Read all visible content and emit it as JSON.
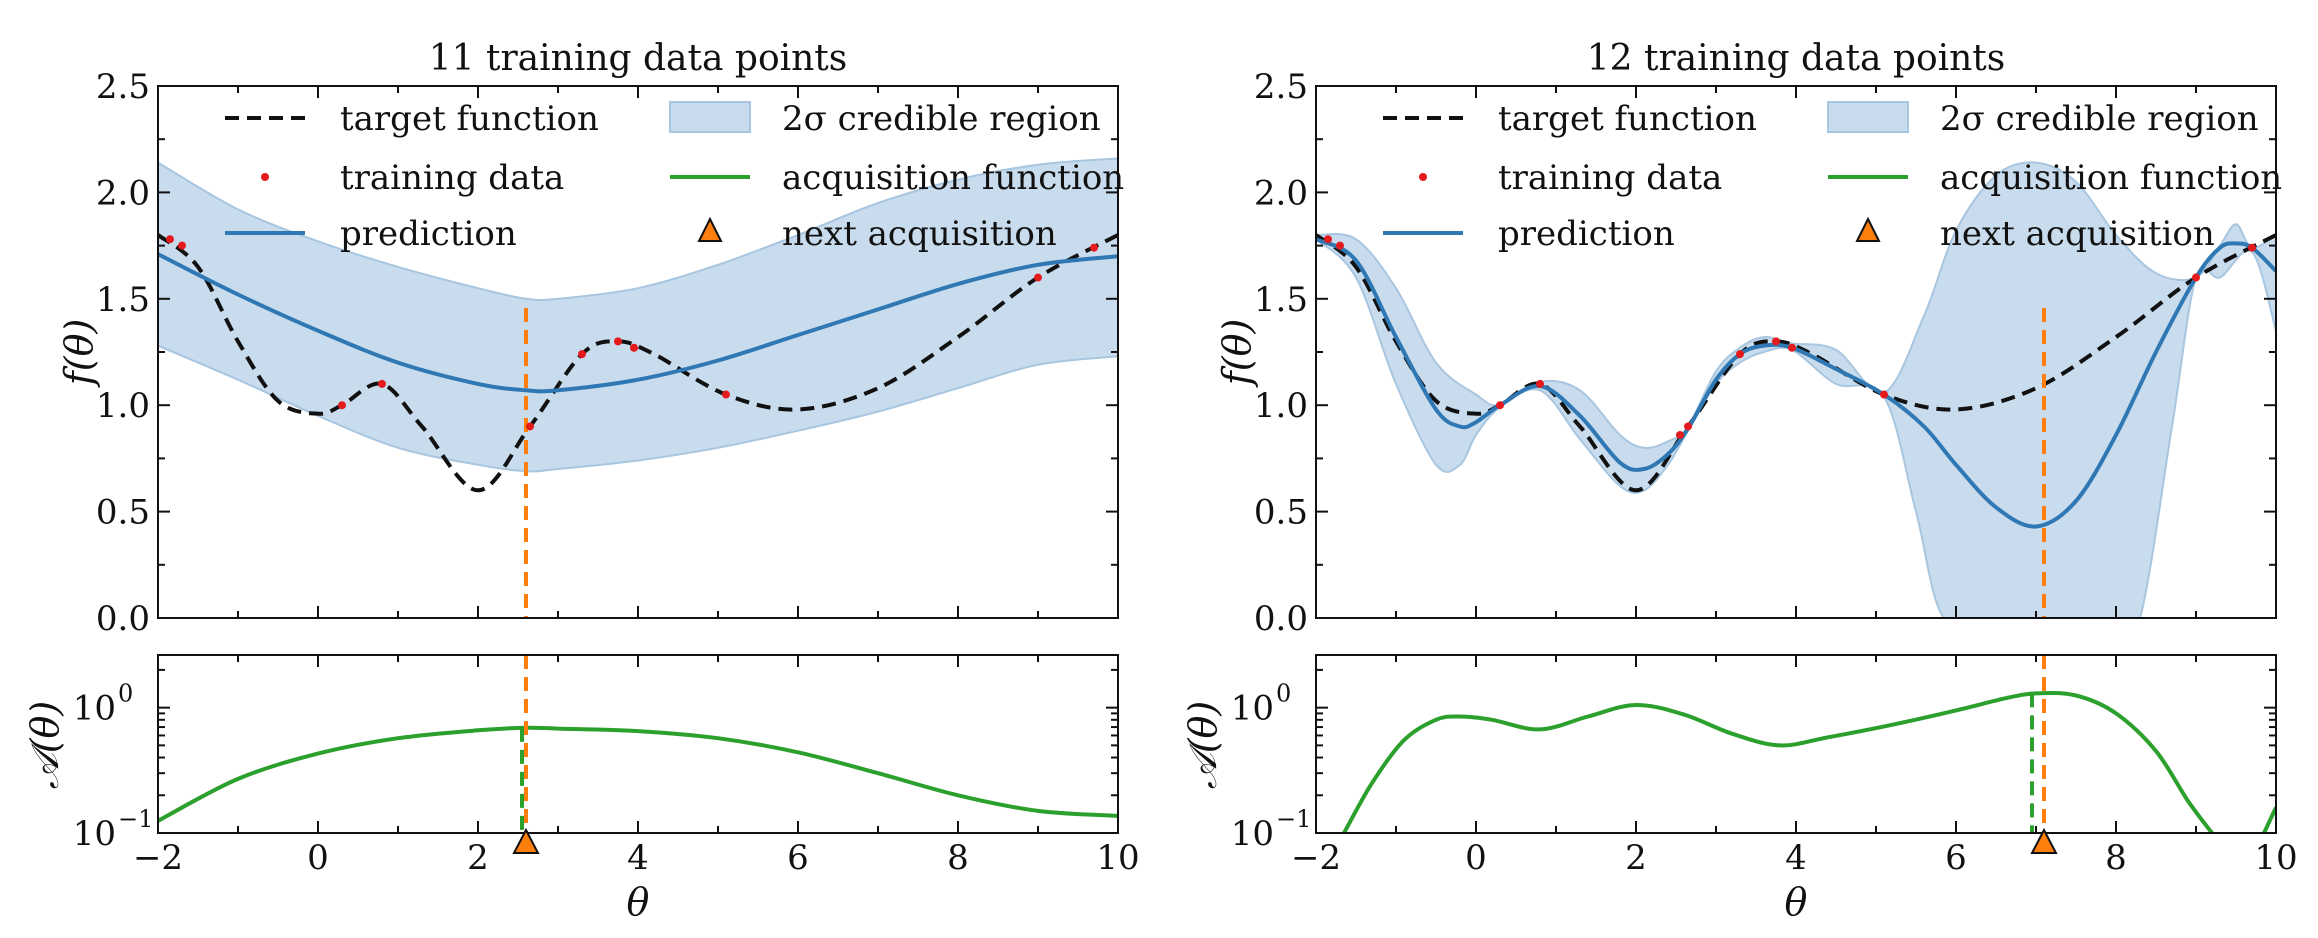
{
  "colors": {
    "target": "#111111",
    "prediction": "#2f78b4",
    "band_fill": "#c8dced",
    "band_stroke": "#a8c6e0",
    "training": "#e41a1c",
    "acquisition": "#2ca02c",
    "next": "#ff7f0e"
  },
  "axes": {
    "xlabel": "θ",
    "ylabel_top": "f(θ)",
    "ylabel_bottom": "𝒜(θ)",
    "xlim": [
      -2,
      10
    ],
    "ylim_top": [
      0,
      2.5
    ],
    "ylim_bottom_log10": [
      -1,
      0.42
    ],
    "xticks": [
      "−2",
      "0",
      "2",
      "4",
      "6",
      "8",
      "10"
    ],
    "yticks_top": [
      "0.0",
      "0.5",
      "1.0",
      "1.5",
      "2.0",
      "2.5"
    ],
    "yticks_bottom": [
      "10",
      "10"
    ],
    "yticks_bottom_exp": [
      "−1",
      "0"
    ]
  },
  "legend": {
    "target": "target function",
    "band": "2σ credible region",
    "training": "training data",
    "acquisition": "acquisition function",
    "prediction": "prediction",
    "next": "next acquisition"
  },
  "chart_data": [
    {
      "type": "line",
      "title": "11 training data points",
      "training_points": {
        "x": [
          -1.85,
          -1.7,
          0.3,
          0.8,
          2.65,
          3.3,
          3.75,
          3.95,
          5.1,
          9.0,
          9.7
        ],
        "y": [
          1.78,
          1.75,
          1.0,
          1.1,
          0.9,
          1.24,
          1.3,
          1.27,
          1.05,
          1.6,
          1.74
        ]
      },
      "prediction": {
        "x": [
          -2,
          -1,
          0,
          1,
          2,
          2.6,
          3,
          4,
          5,
          6,
          7,
          8,
          9,
          10
        ],
        "y": [
          1.71,
          1.52,
          1.35,
          1.2,
          1.1,
          1.07,
          1.07,
          1.12,
          1.21,
          1.33,
          1.45,
          1.57,
          1.66,
          1.7
        ]
      },
      "band_upper": {
        "x": [
          -2,
          -1,
          0,
          1,
          2,
          2.6,
          3,
          4,
          5,
          6,
          7,
          8,
          9,
          10
        ],
        "y": [
          2.14,
          1.92,
          1.77,
          1.65,
          1.55,
          1.5,
          1.5,
          1.55,
          1.66,
          1.8,
          1.95,
          2.06,
          2.13,
          2.16
        ]
      },
      "band_lower": {
        "x": [
          -2,
          -1,
          0,
          1,
          2,
          2.6,
          3,
          4,
          5,
          6,
          7,
          8,
          9,
          10
        ],
        "y": [
          1.28,
          1.12,
          0.95,
          0.8,
          0.72,
          0.69,
          0.7,
          0.74,
          0.8,
          0.88,
          0.97,
          1.08,
          1.19,
          1.23
        ]
      },
      "acquisition": {
        "x": [
          -2,
          -1,
          0,
          1,
          2,
          2.6,
          3,
          4,
          5,
          6,
          7,
          8,
          9,
          10
        ],
        "y": [
          0.125,
          0.27,
          0.43,
          0.57,
          0.66,
          0.69,
          0.68,
          0.65,
          0.57,
          0.44,
          0.3,
          0.2,
          0.15,
          0.137
        ]
      },
      "next_acquisition_x": 2.6
    },
    {
      "type": "line",
      "title": "12 training data points",
      "training_points": {
        "x": [
          -1.85,
          -1.7,
          0.3,
          0.8,
          2.55,
          2.65,
          3.3,
          3.75,
          3.95,
          5.1,
          9.0,
          9.7
        ],
        "y": [
          1.78,
          1.75,
          1.0,
          1.1,
          0.86,
          0.9,
          1.24,
          1.3,
          1.27,
          1.05,
          1.6,
          1.74
        ]
      },
      "prediction": {
        "x": [
          -2,
          -1.5,
          -1,
          -0.5,
          -0.2,
          0,
          0.3,
          0.8,
          1.3,
          1.8,
          2.1,
          2.4,
          2.65,
          3.0,
          3.3,
          3.6,
          3.95,
          4.5,
          5.1,
          5.6,
          6.0,
          6.5,
          7.0,
          7.5,
          8.0,
          8.5,
          9.0,
          9.3,
          9.5,
          9.7,
          10
        ],
        "y": [
          1.78,
          1.68,
          1.32,
          0.98,
          0.9,
          0.92,
          1.0,
          1.09,
          0.95,
          0.73,
          0.7,
          0.77,
          0.89,
          1.12,
          1.24,
          1.28,
          1.27,
          1.17,
          1.05,
          0.9,
          0.72,
          0.52,
          0.43,
          0.55,
          0.86,
          1.25,
          1.6,
          1.74,
          1.76,
          1.74,
          1.63
        ]
      },
      "band_upper": {
        "x": [
          -2,
          -1.5,
          -1,
          -0.5,
          0,
          0.3,
          0.8,
          1.3,
          1.8,
          2.1,
          2.4,
          2.65,
          3.0,
          3.3,
          3.6,
          3.95,
          4.5,
          5.1,
          5.6,
          6.0,
          6.5,
          7.0,
          7.5,
          8.0,
          8.5,
          9.0,
          9.3,
          9.5,
          9.7,
          10
        ],
        "y": [
          1.8,
          1.78,
          1.55,
          1.2,
          1.05,
          1.0,
          1.11,
          1.07,
          0.86,
          0.8,
          0.83,
          0.9,
          1.16,
          1.27,
          1.32,
          1.29,
          1.26,
          1.06,
          1.42,
          1.82,
          2.08,
          2.14,
          2.05,
          1.8,
          1.62,
          1.6,
          1.75,
          1.85,
          1.74,
          1.8
        ]
      },
      "band_lower": {
        "x": [
          -2,
          -1.5,
          -1,
          -0.5,
          -0.2,
          0,
          0.3,
          0.8,
          1.3,
          1.8,
          2.1,
          2.4,
          2.65,
          3.0,
          3.3,
          3.6,
          3.95,
          4.5,
          5.1,
          5.5,
          5.85,
          6.5,
          7.0,
          7.5,
          8.0,
          8.3,
          8.7,
          9.0,
          9.3,
          9.7,
          10
        ],
        "y": [
          1.78,
          1.6,
          1.1,
          0.72,
          0.72,
          0.86,
          0.99,
          1.07,
          0.84,
          0.62,
          0.6,
          0.72,
          0.88,
          1.1,
          1.2,
          1.25,
          1.26,
          1.1,
          1.04,
          0.5,
          0.0,
          0.0,
          0.0,
          0.0,
          0.0,
          0.0,
          0.9,
          1.6,
          1.6,
          1.72,
          1.35
        ]
      },
      "acquisition": {
        "x": [
          -1.65,
          -1.3,
          -0.9,
          -0.5,
          -0.2,
          0.2,
          0.8,
          1.4,
          2.0,
          2.6,
          3.2,
          3.8,
          4.4,
          5.2,
          6.0,
          6.6,
          7.0,
          7.5,
          8.0,
          8.5,
          8.9,
          9.2
        ],
        "y": [
          0.1,
          0.25,
          0.55,
          0.8,
          0.85,
          0.8,
          0.67,
          0.85,
          1.05,
          0.88,
          0.62,
          0.5,
          0.58,
          0.73,
          0.95,
          1.18,
          1.3,
          1.25,
          0.9,
          0.45,
          0.18,
          0.1
        ]
      },
      "acquisition_right_tail": {
        "x": [
          9.85,
          10
        ],
        "y": [
          0.1,
          0.16
        ]
      },
      "next_acquisition_x": 7.1
    }
  ]
}
